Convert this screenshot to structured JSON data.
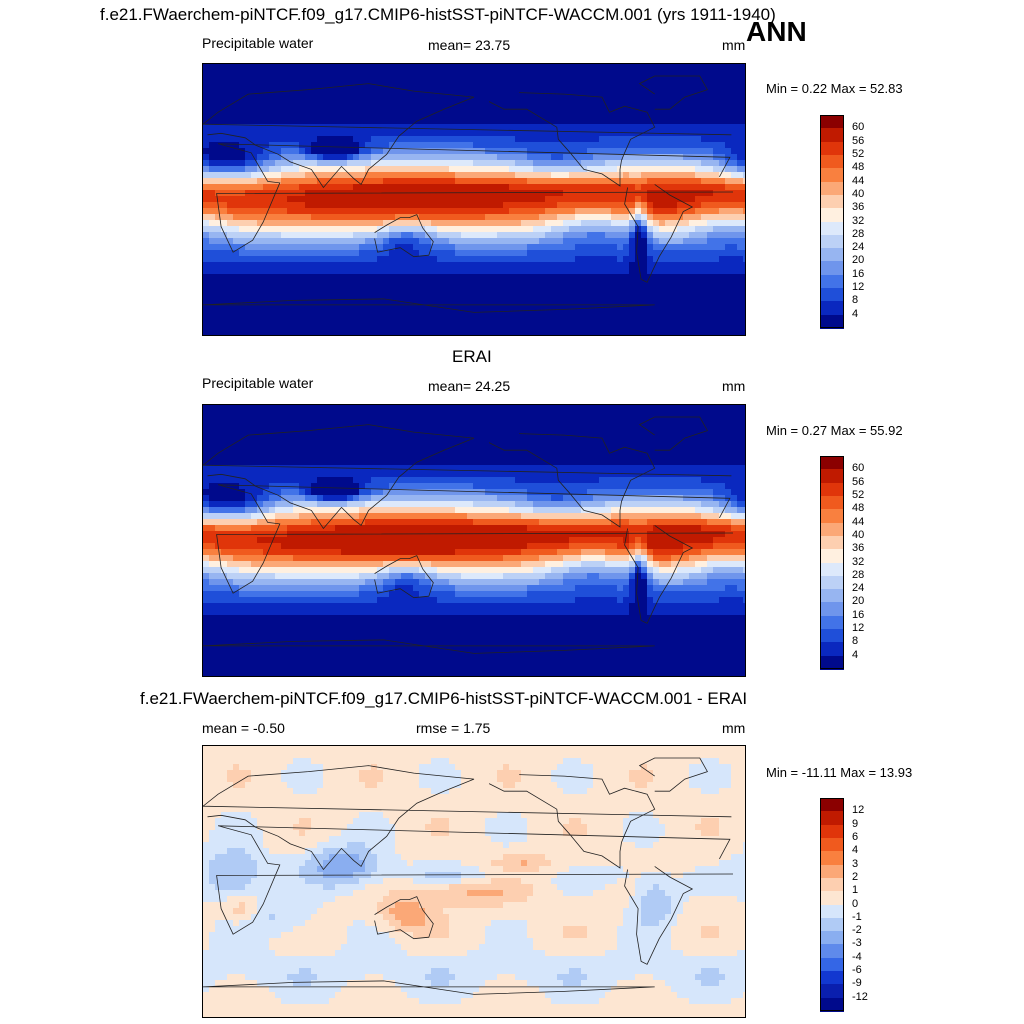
{
  "header": {
    "title": "f.e21.FWaerchem-piNTCF.f09_g17.CMIP6-histSST-piNTCF-WACCM.001 (yrs 1911-1940)",
    "season": "ANN"
  },
  "panels": [
    {
      "heading": "",
      "left_label": "Precipitable water",
      "center_label": "mean=  23.75",
      "units": "mm",
      "minmax": "Min =   0.22 Max =  52.83"
    },
    {
      "heading": "ERAI",
      "left_label": "Precipitable water",
      "center_label": "mean=  24.25",
      "units": "mm",
      "minmax": "Min =   0.27 Max =  55.92"
    },
    {
      "heading": "f.e21.FWaerchem-piNTCF.f09_g17.CMIP6-histSST-piNTCF-WACCM.001 - ERAI",
      "left_label": "mean =  -0.50",
      "center_label": "rmse =   1.75",
      "units": "mm",
      "minmax": "Min = -11.11 Max =  13.93"
    }
  ],
  "chart_data": [
    {
      "type": "heatmap",
      "title": "f.e21.FWaerchem-piNTCF.f09_g17.CMIP6-histSST-piNTCF-WACCM.001 (yrs 1911-1940)",
      "variable": "Precipitable water",
      "units": "mm",
      "mean": 23.75,
      "min": 0.22,
      "max": 52.83,
      "colorbar_levels": [
        "60",
        "56",
        "52",
        "48",
        "44",
        "40",
        "36",
        "32",
        "28",
        "24",
        "20",
        "16",
        "12",
        "8",
        "4"
      ],
      "colorbar_colors": [
        "#8b0000",
        "#c01a00",
        "#e0350a",
        "#f05a1e",
        "#f9803f",
        "#fba877",
        "#fdcfb0",
        "#fff0e0",
        "#dde9fb",
        "#bcd1f6",
        "#97b5f1",
        "#6f95ec",
        "#4273e8",
        "#1f4fd9",
        "#0a28bf",
        "#000a8c"
      ]
    },
    {
      "type": "heatmap",
      "title": "ERAI",
      "variable": "Precipitable water",
      "units": "mm",
      "mean": 24.25,
      "min": 0.27,
      "max": 55.92,
      "colorbar_levels": [
        "60",
        "56",
        "52",
        "48",
        "44",
        "40",
        "36",
        "32",
        "28",
        "24",
        "20",
        "16",
        "12",
        "8",
        "4"
      ],
      "colorbar_colors": [
        "#8b0000",
        "#c01a00",
        "#e0350a",
        "#f05a1e",
        "#f9803f",
        "#fba877",
        "#fdcfb0",
        "#fff0e0",
        "#dde9fb",
        "#bcd1f6",
        "#97b5f1",
        "#6f95ec",
        "#4273e8",
        "#1f4fd9",
        "#0a28bf",
        "#000a8c"
      ]
    },
    {
      "type": "heatmap",
      "title": "f.e21.FWaerchem-piNTCF.f09_g17.CMIP6-histSST-piNTCF-WACCM.001 - ERAI",
      "units": "mm",
      "mean": -0.5,
      "rmse": 1.75,
      "min": -11.11,
      "max": 13.93,
      "colorbar_levels": [
        "12",
        "9",
        "6",
        "4",
        "3",
        "2",
        "1",
        "0",
        "-1",
        "-2",
        "-3",
        "-4",
        "-6",
        "-9",
        "-12"
      ],
      "colorbar_colors": [
        "#8b0000",
        "#c01a00",
        "#e0350a",
        "#f05a1e",
        "#f9803f",
        "#fba877",
        "#fdcfb0",
        "#fde6d2",
        "#d6e6fb",
        "#b0cbf5",
        "#8aaef0",
        "#5f8aeb",
        "#3466e6",
        "#1238d0",
        "#0a1fae",
        "#000a8c"
      ]
    }
  ]
}
